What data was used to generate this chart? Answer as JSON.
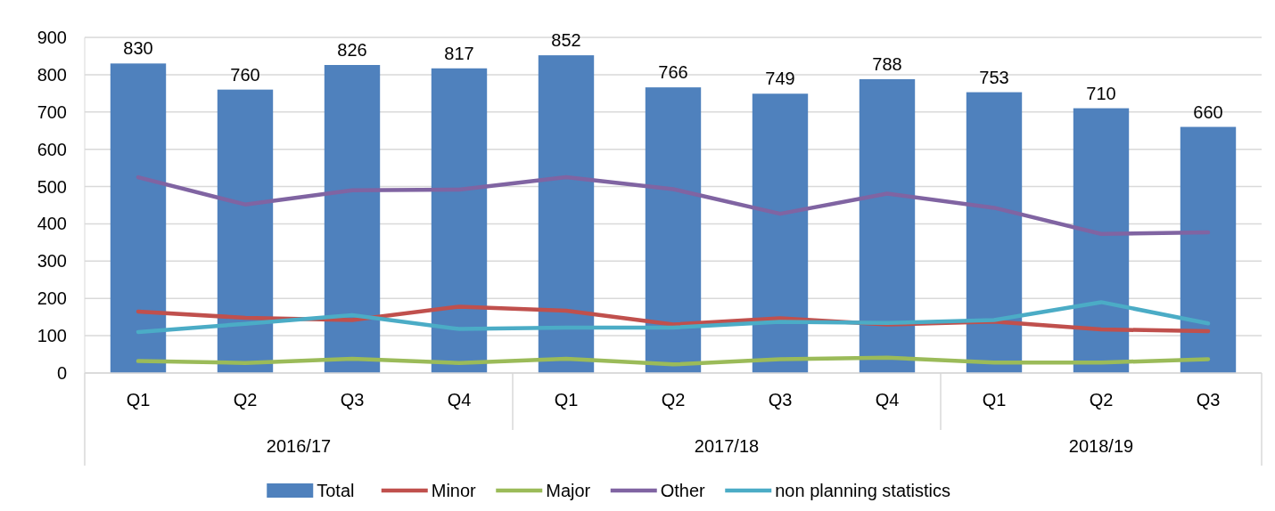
{
  "chart_data": {
    "type": "bar",
    "categories": [
      "Q1",
      "Q2",
      "Q3",
      "Q4",
      "Q1",
      "Q2",
      "Q3",
      "Q4",
      "Q1",
      "Q2",
      "Q3"
    ],
    "annotations": [
      "2016/17",
      "2017/18",
      "2018/19"
    ],
    "series": [
      {
        "name": "Total",
        "color": "#4f81bd",
        "values": [
          830,
          760,
          826,
          817,
          852,
          766,
          749,
          788,
          753,
          710,
          660
        ],
        "value_labels": [
          "830",
          "760",
          "826",
          "817",
          "852",
          "766",
          "749",
          "788",
          "753",
          "710",
          "660"
        ]
      },
      {
        "name": "Minor",
        "type": "line",
        "color": "#c0504d",
        "values": [
          165,
          148,
          142,
          178,
          167,
          130,
          147,
          130,
          138,
          117,
          112
        ]
      },
      {
        "name": "Major",
        "type": "line",
        "color": "#9bbb59",
        "values": [
          32,
          27,
          38,
          27,
          38,
          23,
          37,
          41,
          28,
          28,
          37
        ]
      },
      {
        "name": "Other",
        "type": "line",
        "color": "#8064a2",
        "values": [
          525,
          452,
          490,
          492,
          525,
          493,
          427,
          481,
          443,
          373,
          377
        ]
      },
      {
        "name": "non planning statistics",
        "type": "line",
        "color": "#4bacc6",
        "values": [
          110,
          132,
          155,
          118,
          122,
          122,
          137,
          134,
          142,
          190,
          133
        ]
      }
    ],
    "ylim": [
      0,
      900
    ],
    "yticks": [
      0,
      100,
      200,
      300,
      400,
      500,
      600,
      700,
      800,
      900
    ],
    "grid": "y",
    "legend": "bottom",
    "marker": "none",
    "line_style": "solid"
  }
}
